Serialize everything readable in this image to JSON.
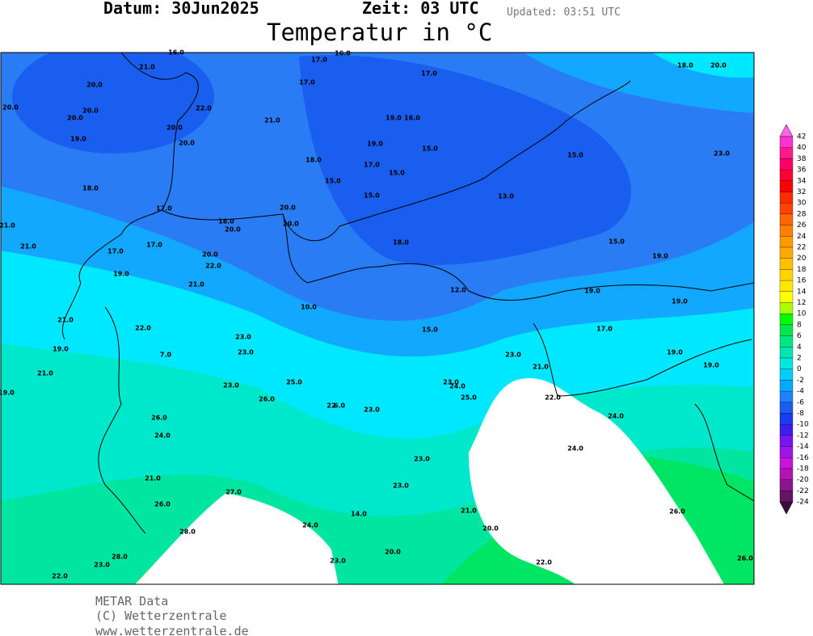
{
  "header": {
    "date": "Datum: 30Jun2025",
    "time": "Zeit: 03 UTC",
    "updated": "Updated: 03:51 UTC",
    "title": "Temperatur in °C"
  },
  "stations": [
    "16.0",
    "16.0",
    "21.0",
    "20.0",
    "20.0",
    "20.0",
    "20.0",
    "22.0",
    "20.0",
    "19.0",
    "20.0",
    "21.0",
    "17.0",
    "17.0",
    "17.0",
    "19.0",
    "16.0",
    "19.0",
    "15.0",
    "18.0",
    "17.0",
    "15.0",
    "15.0",
    "15.0",
    "15.0",
    "13.0",
    "18.0",
    "20.0",
    "23.0",
    "18.0",
    "17.0",
    "20.0",
    "18.0",
    "20.0",
    "20.0",
    "21.0",
    "21.0",
    "17.0",
    "18.0",
    "15.0",
    "19.0",
    "17.0",
    "20.0",
    "22.0",
    "19.0",
    "21.0",
    "12.0",
    "19.0",
    "19.0",
    "10.0",
    "21.0",
    "22.0",
    "15.0",
    "17.0",
    "23.0",
    "23.0",
    "19.0",
    "7.0",
    "23.0",
    "19.0",
    "19.0",
    "21.0",
    "21.0",
    "23.0",
    "25.0",
    "23.0",
    "24.0",
    "19.0",
    "26.0",
    "25.0",
    "22.0",
    "22",
    "6.0",
    "23.0",
    "24.0",
    "26.0",
    "24.0",
    "24.0",
    "23.0",
    "21.0",
    "23.0",
    "27.0",
    "26.0",
    "21.0",
    "14.0",
    "26.0",
    "24.0",
    "20.0",
    "28.0",
    "28.0",
    "20.0",
    "23.0",
    "23.0",
    "22.0",
    "26.0",
    "22.0"
  ],
  "colorbar": {
    "ticks": [
      42,
      40,
      38,
      36,
      34,
      32,
      30,
      28,
      26,
      24,
      22,
      20,
      18,
      16,
      14,
      12,
      10,
      8,
      6,
      4,
      2,
      0,
      -2,
      -4,
      -6,
      -8,
      -10,
      -12,
      -14,
      -16,
      -18,
      -20,
      -22,
      -24
    ],
    "colors": [
      "#ff66e6",
      "#ff33cc",
      "#ff1a8c",
      "#ff0066",
      "#ff0033",
      "#ff0000",
      "#ff2a00",
      "#ff4400",
      "#ff6600",
      "#ff7f00",
      "#ff9900",
      "#ffaa00",
      "#ffc000",
      "#ffd400",
      "#ffe600",
      "#ffff00",
      "#aaff00",
      "#00ff00",
      "#00e650",
      "#00e680",
      "#00e6b0",
      "#00e6e0",
      "#00ccff",
      "#00aaff",
      "#1e82ff",
      "#1a5ef0",
      "#1a3cf0",
      "#3c1ef0",
      "#7814f0",
      "#a014e6",
      "#c814dc",
      "#b414b4",
      "#8c148c",
      "#641464",
      "#3c0a3c"
    ]
  },
  "footer": {
    "line1": "METAR Data",
    "line2": "(C) Wetterzentrale",
    "line3": "www.wetterzentrale.de"
  }
}
